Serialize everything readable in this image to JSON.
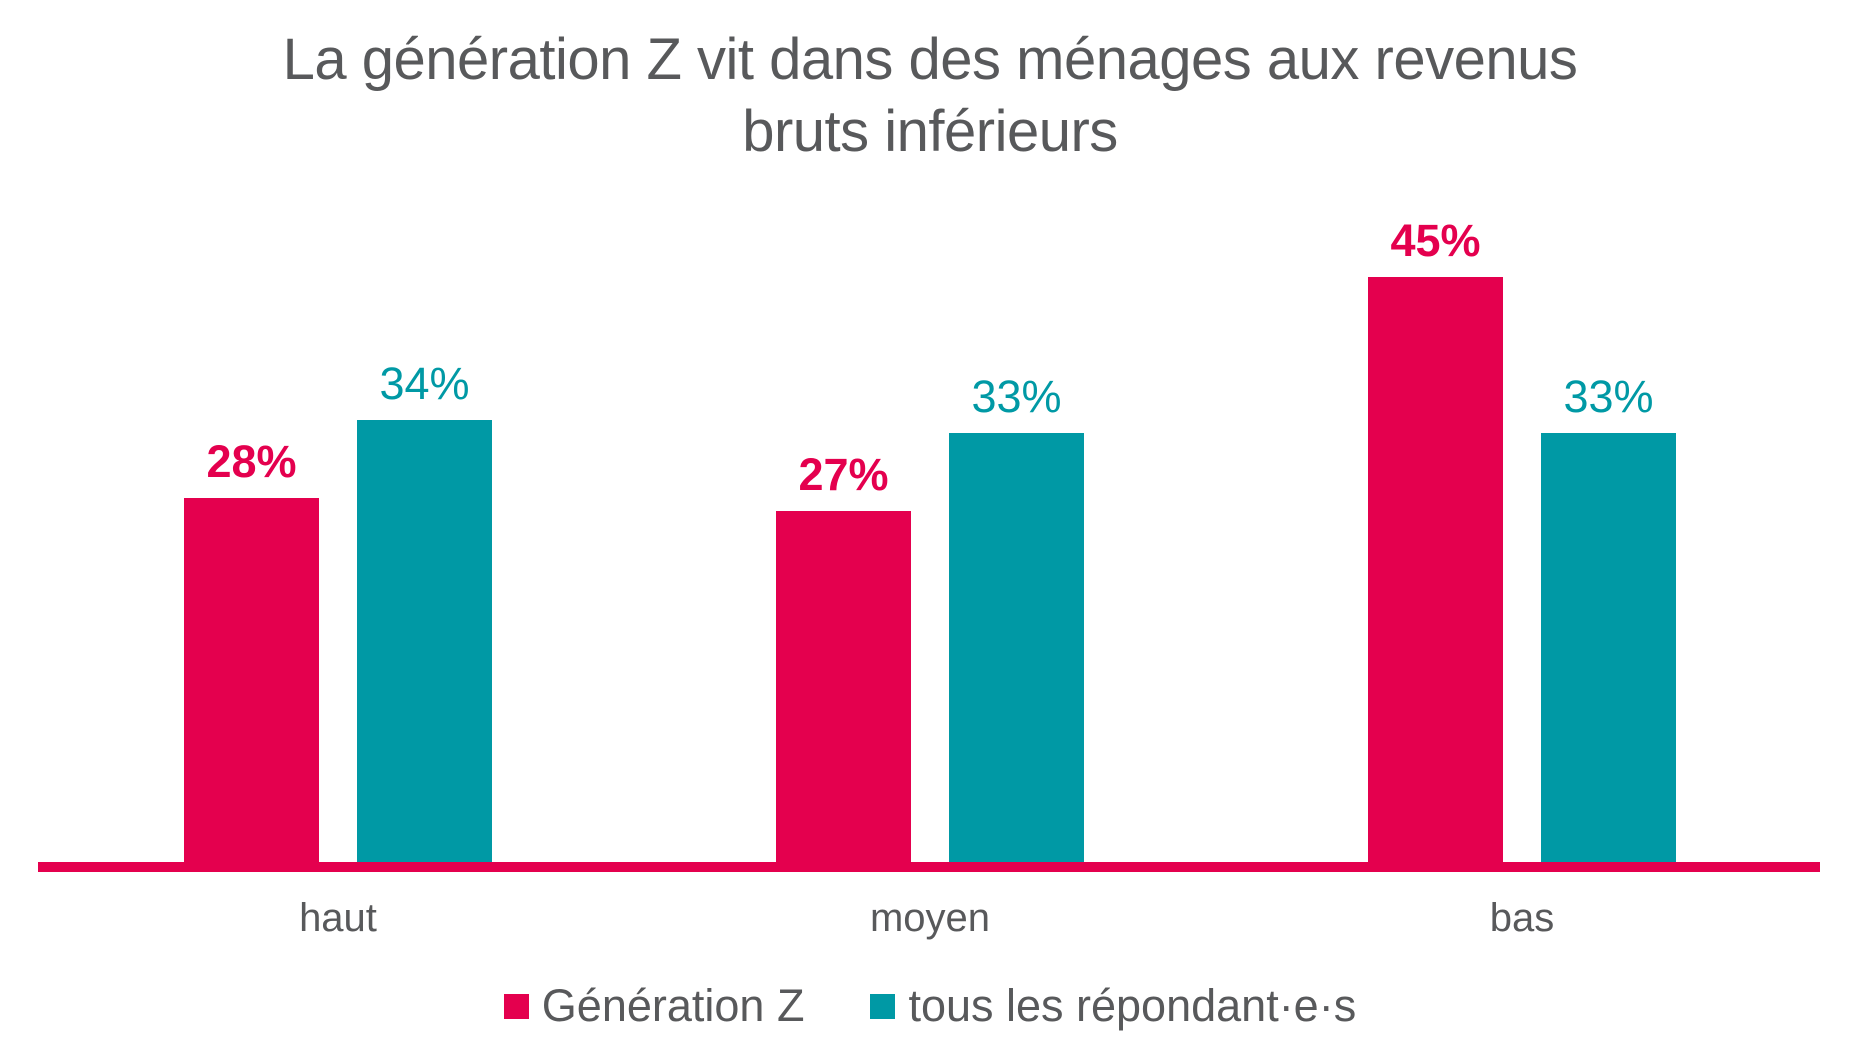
{
  "chart_data": {
    "type": "bar",
    "title": "La génération Z vit dans des ménages aux revenus bruts inférieurs",
    "title_lines": [
      "La génération Z vit dans des ménages aux revenus",
      "bruts inférieurs"
    ],
    "categories": [
      "haut",
      "moyen",
      "bas"
    ],
    "series": [
      {
        "name": "Génération Z",
        "color": "#E4004E",
        "values": [
          28,
          27,
          45
        ],
        "value_labels": [
          "28%",
          "27%",
          "45%"
        ],
        "label_bold": true
      },
      {
        "name": "tous les répondant·e·s",
        "color": "#0099A5",
        "values": [
          34,
          33,
          33
        ],
        "value_labels": [
          "34%",
          "33%",
          "33%"
        ],
        "label_bold": false
      }
    ],
    "unit": "%",
    "ylim": [
      0,
      45
    ],
    "grid": false,
    "legend_position": "bottom",
    "axis_line_color": "#E4004E",
    "text_color": "#58595B"
  }
}
